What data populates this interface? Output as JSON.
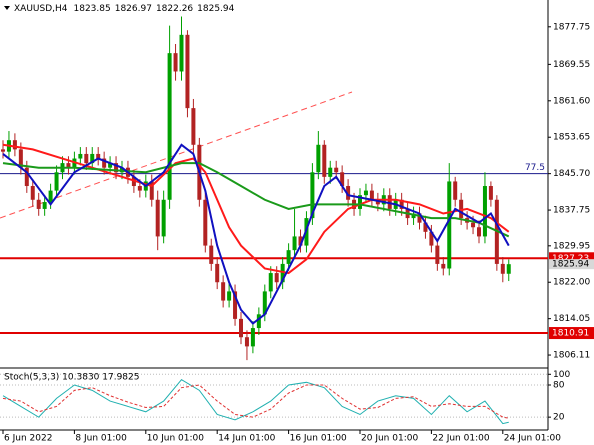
{
  "chart_data": [
    {
      "type": "candlestick",
      "title": "XAUUSD,H4",
      "up_color": "#00a000",
      "down_color": "#b22222",
      "open": [
        1851,
        1850.5,
        1853,
        1851,
        1847,
        1843,
        1840,
        1838,
        1839.5,
        1842,
        1846,
        1848,
        1847,
        1849,
        1850,
        1848,
        1850,
        1849,
        1847,
        1848,
        1846,
        1847,
        1845,
        1843,
        1842,
        1844,
        1840,
        1832,
        1840,
        1872,
        1868,
        1876,
        1860,
        1852,
        1840,
        1830,
        1826,
        1822,
        1818,
        1820,
        1814,
        1810,
        1808,
        1812,
        1815,
        1820,
        1824,
        1822,
        1826,
        1829,
        1832,
        1830,
        1836,
        1846,
        1852,
        1845,
        1847,
        1846,
        1843,
        1840,
        1838,
        1841,
        1842,
        1840,
        1839,
        1841,
        1838,
        1840,
        1838,
        1836,
        1837,
        1835,
        1833,
        1830,
        1826,
        1825,
        1844,
        1840,
        1836,
        1835,
        1834,
        1832,
        1843,
        1840,
        1826,
        1823.85
      ],
      "high": [
        1853,
        1855,
        1854.5,
        1852.5,
        1848.5,
        1844.5,
        1841.5,
        1841,
        1843.5,
        1847.5,
        1849.5,
        1849.5,
        1850.5,
        1851.5,
        1851.5,
        1851.5,
        1851.5,
        1850.5,
        1849.5,
        1849.5,
        1848.5,
        1848.5,
        1846.5,
        1844.5,
        1845.5,
        1845.5,
        1842,
        1842,
        1878,
        1874,
        1880,
        1877,
        1862,
        1853.5,
        1841.5,
        1831.5,
        1827.5,
        1823.5,
        1822,
        1821.5,
        1815.5,
        1811.5,
        1813.5,
        1816.5,
        1821.5,
        1825.5,
        1825.5,
        1827.5,
        1830.5,
        1838,
        1833.5,
        1837.5,
        1848,
        1855,
        1853,
        1848.5,
        1848.5,
        1847.5,
        1844.5,
        1841.5,
        1842.5,
        1843.5,
        1843.5,
        1841.5,
        1842.5,
        1842.5,
        1841.5,
        1841.5,
        1839.5,
        1838.5,
        1838.5,
        1836.5,
        1834.5,
        1831.5,
        1827.5,
        1848,
        1845,
        1841.5,
        1837.5,
        1836.5,
        1835.5,
        1846,
        1844,
        1841,
        1827.5,
        1826.97
      ],
      "low": [
        1849,
        1849,
        1849.5,
        1845.5,
        1841.5,
        1838.5,
        1836.5,
        1836.5,
        1838,
        1840.5,
        1844.5,
        1845.5,
        1845.5,
        1847.5,
        1846.5,
        1846.5,
        1847.5,
        1845.5,
        1845.5,
        1844.5,
        1844.5,
        1843.5,
        1841.5,
        1840.5,
        1840.5,
        1838.5,
        1829,
        1830.5,
        1838,
        1866,
        1866,
        1858,
        1850,
        1838.5,
        1828.5,
        1824.5,
        1820.5,
        1816.5,
        1816.5,
        1812.5,
        1808.5,
        1805,
        1806.5,
        1810.5,
        1813.5,
        1818.5,
        1820.5,
        1820.5,
        1824.5,
        1827.5,
        1828.5,
        1828.5,
        1834.5,
        1844.5,
        1843.5,
        1843.5,
        1844.5,
        1841.5,
        1838.5,
        1836.5,
        1836.5,
        1839.5,
        1838.5,
        1837.5,
        1837.5,
        1836.5,
        1836.5,
        1836.5,
        1834.5,
        1834.5,
        1833.5,
        1831.5,
        1828.5,
        1824.5,
        1823.5,
        1823.5,
        1838.5,
        1834.5,
        1833.5,
        1832.5,
        1830.5,
        1830.5,
        1838.5,
        1824.5,
        1822,
        1822.26
      ],
      "close": [
        1850.5,
        1853,
        1851,
        1847,
        1843,
        1840,
        1838,
        1839.5,
        1842,
        1846,
        1848,
        1847,
        1849,
        1850,
        1848,
        1850,
        1849,
        1847,
        1848,
        1846,
        1847,
        1845,
        1843,
        1842,
        1844,
        1840,
        1832,
        1840,
        1872,
        1868,
        1876,
        1860,
        1852,
        1840,
        1830,
        1826,
        1822,
        1818,
        1820,
        1814,
        1810,
        1808,
        1812,
        1815,
        1820,
        1824,
        1822,
        1826,
        1829,
        1832,
        1830,
        1836,
        1846,
        1852,
        1845,
        1847,
        1846,
        1843,
        1840,
        1838,
        1841,
        1842,
        1840,
        1839,
        1841,
        1838,
        1840,
        1838,
        1836,
        1837,
        1835,
        1833,
        1830,
        1826,
        1825,
        1844,
        1840,
        1836,
        1835,
        1834,
        1832,
        1843,
        1840,
        1826,
        1823.85,
        1825.94
      ],
      "ylim": [
        1803.5,
        1883.6
      ],
      "yticks": [
        {
          "value": 1877.75,
          "label": "1877.75"
        },
        {
          "value": 1869.55,
          "label": "1869.55"
        },
        {
          "value": 1861.6,
          "label": "1861.60"
        },
        {
          "value": 1853.65,
          "label": "1853.65"
        },
        {
          "value": 1845.7,
          "label": "1845.70"
        },
        {
          "value": 1837.75,
          "label": "1837.75"
        },
        {
          "value": 1829.95,
          "label": "1829.95"
        },
        {
          "value": 1822,
          "label": "1822.00"
        },
        {
          "value": 1814.05,
          "label": "1814.05"
        },
        {
          "value": 1806.11,
          "label": "1806.11"
        }
      ],
      "xticks": [
        {
          "value": 0,
          "label": "6 Jun 2022"
        },
        {
          "value": 12,
          "label": "8 Jun 01:00"
        },
        {
          "value": 24,
          "label": "10 Jun 01:00"
        },
        {
          "value": 36,
          "label": "14 Jun 01:00"
        },
        {
          "value": 48,
          "label": "16 Jun 01:00"
        },
        {
          "value": 60,
          "label": "20 Jun 01:00"
        },
        {
          "value": 72,
          "label": "22 Jun 01:00"
        },
        {
          "value": 84,
          "label": "24 Jun 01:00"
        }
      ],
      "lines": [
        {
          "color": "#ff1a1a",
          "x": [
            0,
            5,
            10,
            15,
            20,
            25,
            29,
            32,
            34,
            36,
            38,
            40,
            44,
            48,
            51,
            54,
            58,
            62,
            66,
            70,
            74,
            78,
            82,
            85
          ],
          "values": [
            1852,
            1851,
            1849,
            1847,
            1845,
            1843,
            1848,
            1849,
            1846,
            1840,
            1834,
            1830,
            1825,
            1824,
            1827,
            1833,
            1838,
            1840,
            1840,
            1839,
            1837,
            1838,
            1836,
            1833
          ]
        },
        {
          "color": "#1a9a1a",
          "x": [
            0,
            6,
            12,
            18,
            24,
            30,
            33,
            36,
            40,
            44,
            48,
            52,
            56,
            60,
            64,
            68,
            72,
            76,
            80,
            85
          ],
          "values": [
            1848,
            1847,
            1847,
            1846.5,
            1846,
            1848,
            1848,
            1846,
            1843,
            1840,
            1838,
            1839,
            1839,
            1839,
            1838,
            1837,
            1836,
            1836,
            1835,
            1832
          ]
        },
        {
          "color": "#1010c0",
          "x": [
            0,
            4,
            8,
            12,
            16,
            20,
            24,
            27,
            30,
            32,
            34,
            36,
            38,
            40,
            42,
            44,
            46,
            48,
            50,
            52,
            54,
            56,
            58,
            62,
            66,
            70,
            73,
            76,
            80,
            82,
            85
          ],
          "values": [
            1850,
            1846,
            1839,
            1846,
            1849,
            1847,
            1843,
            1846,
            1852,
            1850,
            1842,
            1830,
            1822,
            1816,
            1813,
            1815,
            1820,
            1825,
            1830,
            1837,
            1843,
            1845,
            1841,
            1840,
            1839,
            1837,
            1831,
            1838,
            1835,
            1837,
            1830
          ]
        }
      ],
      "hlines": [
        {
          "value": 1845.7,
          "color": "#1a1a8c",
          "label": "77.5"
        },
        {
          "value": 1827.23,
          "color": "#e00000"
        },
        {
          "value": 1810.91,
          "color": "#e00000"
        }
      ]
    },
    {
      "type": "line",
      "title": "Stoch(5,3,3) 10.3830 17.9825",
      "ylim": [
        -4,
        108
      ],
      "yticks": [
        100,
        80,
        20
      ],
      "series": [
        {
          "color": "#20b0b0",
          "dash": false,
          "x": [
            0,
            3,
            6,
            9,
            12,
            15,
            18,
            21,
            24,
            27,
            30,
            33,
            36,
            39,
            42,
            45,
            48,
            51,
            54,
            57,
            60,
            63,
            66,
            69,
            72,
            75,
            78,
            81,
            84,
            85
          ],
          "values": [
            60,
            40,
            20,
            55,
            80,
            70,
            50,
            40,
            30,
            50,
            90,
            70,
            25,
            15,
            30,
            50,
            80,
            85,
            75,
            40,
            25,
            50,
            60,
            55,
            25,
            60,
            30,
            50,
            8,
            10.383
          ]
        },
        {
          "color": "#e03030",
          "dash": true,
          "x": [
            0,
            3,
            6,
            9,
            12,
            15,
            18,
            21,
            24,
            27,
            30,
            33,
            36,
            39,
            42,
            45,
            48,
            51,
            54,
            57,
            60,
            63,
            66,
            69,
            72,
            75,
            78,
            81,
            84,
            85
          ],
          "values": [
            55,
            50,
            30,
            40,
            70,
            75,
            60,
            48,
            38,
            40,
            75,
            80,
            50,
            25,
            20,
            35,
            65,
            80,
            80,
            55,
            35,
            38,
            55,
            58,
            40,
            45,
            40,
            40,
            20,
            17.9825
          ]
        }
      ]
    }
  ]
}
